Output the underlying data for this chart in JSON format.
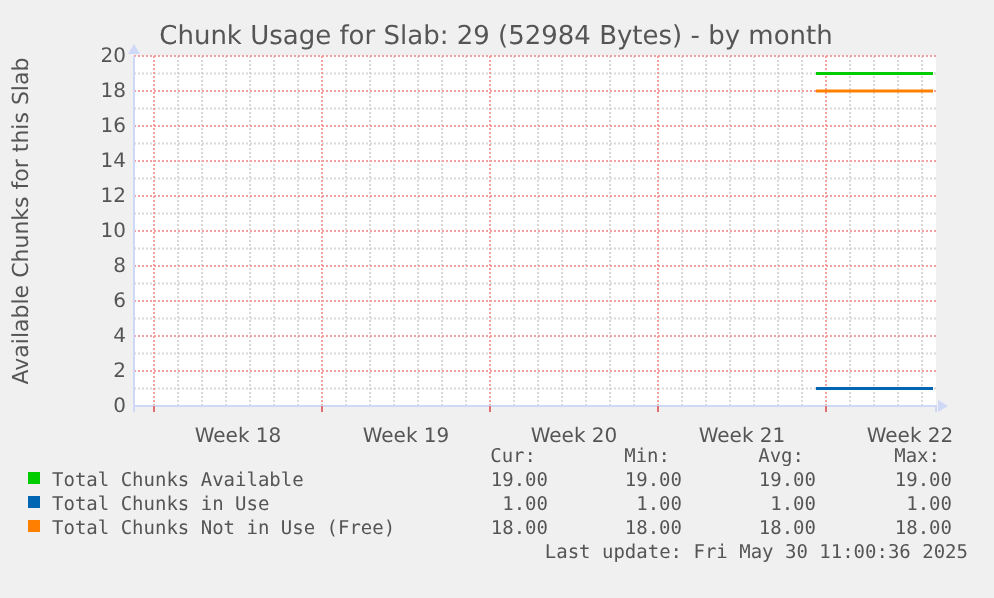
{
  "chart_data": {
    "type": "line",
    "title": "Chunk Usage for Slab: 29 (52984 Bytes) - by month",
    "ylabel": "Available Chunks for this Slab",
    "xlim": [
      "2025-04-27T04:00",
      "2025-05-30T14:00"
    ],
    "xticks": [
      {
        "value": "2025-04-28",
        "label": null
      },
      {
        "value": "2025-05-01T12:00",
        "label": "Week 18"
      },
      {
        "value": "2025-05-05",
        "label": null
      },
      {
        "value": "2025-05-08T12:00",
        "label": "Week 19"
      },
      {
        "value": "2025-05-12",
        "label": null
      },
      {
        "value": "2025-05-15T12:00",
        "label": "Week 20"
      },
      {
        "value": "2025-05-19",
        "label": null
      },
      {
        "value": "2025-05-22T12:00",
        "label": "Week 21"
      },
      {
        "value": "2025-05-26",
        "label": null
      },
      {
        "value": "2025-05-29T12:00",
        "label": "Week 22"
      }
    ],
    "ylim": [
      0,
      20
    ],
    "yticks": [
      0,
      2,
      4,
      6,
      8,
      10,
      12,
      14,
      16,
      18,
      20
    ],
    "grid": true,
    "legend": "bottom",
    "series": [
      {
        "name": "Total Chunks Available",
        "color": "#00cc00",
        "x": [
          "2025-05-25T14:00",
          "2025-05-30T11:00"
        ],
        "values": [
          19,
          19
        ]
      },
      {
        "name": "Total Chunks in Use",
        "color": "#0066b3",
        "x": [
          "2025-05-25T14:00",
          "2025-05-30T11:00"
        ],
        "values": [
          1,
          1
        ]
      },
      {
        "name": "Total Chunks Not in Use (Free)",
        "color": "#ff8000",
        "x": [
          "2025-05-25T14:00",
          "2025-05-30T11:00"
        ],
        "values": [
          18,
          18
        ]
      }
    ],
    "annotations": [
      "Cur:",
      "Min:",
      "Avg:",
      "Max:",
      "19.00",
      "19.00",
      "19.00",
      "19.00",
      "1.00",
      "1.00",
      "1.00",
      "1.00",
      "18.00",
      "18.00",
      "18.00",
      "18.00",
      "Last update: Fri May 30 11:00:36 2025"
    ]
  }
}
